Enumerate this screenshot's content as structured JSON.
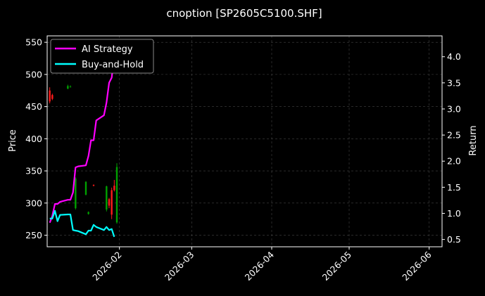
{
  "chart_data": {
    "type": "line",
    "title": "cnoption [SP2605C5100.SHF]",
    "ylabel": "Price",
    "y2label": "Return",
    "ylim": [
      232,
      560
    ],
    "y2lim": [
      0.36,
      4.4
    ],
    "xlim": [
      "2026-01-04",
      "2026-06-06"
    ],
    "yticks": [
      250,
      300,
      350,
      400,
      450,
      500,
      550
    ],
    "y2ticks": [
      0.5,
      1.0,
      1.5,
      2.0,
      2.5,
      3.0,
      3.5,
      4.0
    ],
    "xticks": [
      "2026-02",
      "2026-03",
      "2026-04",
      "2026-05",
      "2026-06"
    ],
    "grid": true,
    "legend_position": "top-left",
    "colors": {
      "background": "#000000",
      "strategy": "#ff00ff",
      "buyhold": "#00ffff",
      "candle_up": "#00a000",
      "candle_down": "#ff1a1a",
      "grid": "#444444",
      "axis": "#ffffff"
    },
    "series": [
      {
        "name": "AI Strategy",
        "axis": "right",
        "x": [
          "2026-01-05",
          "2026-01-06",
          "2026-01-07",
          "2026-01-08",
          "2026-01-09",
          "2026-01-12",
          "2026-01-13",
          "2026-01-14",
          "2026-01-15",
          "2026-01-16",
          "2026-01-19",
          "2026-01-20",
          "2026-01-21",
          "2026-01-22",
          "2026-01-23",
          "2026-01-26",
          "2026-01-27",
          "2026-01-28",
          "2026-01-29",
          "2026-01-30"
        ],
        "values": [
          0.82,
          0.95,
          1.18,
          1.18,
          1.22,
          1.26,
          1.26,
          1.4,
          1.88,
          1.9,
          1.92,
          2.1,
          2.4,
          2.4,
          2.78,
          2.88,
          3.12,
          3.5,
          3.6,
          4.0
        ]
      },
      {
        "name": "Buy-and-Hold",
        "axis": "right",
        "x": [
          "2026-01-05",
          "2026-01-06",
          "2026-01-07",
          "2026-01-08",
          "2026-01-09",
          "2026-01-12",
          "2026-01-13",
          "2026-01-14",
          "2026-01-15",
          "2026-01-16",
          "2026-01-19",
          "2026-01-20",
          "2026-01-21",
          "2026-01-22",
          "2026-01-23",
          "2026-01-26",
          "2026-01-27",
          "2026-01-28",
          "2026-01-29",
          "2026-01-30"
        ],
        "values": [
          0.9,
          0.9,
          1.05,
          0.85,
          0.97,
          0.98,
          0.98,
          0.68,
          0.67,
          0.66,
          0.6,
          0.67,
          0.67,
          0.78,
          0.74,
          0.68,
          0.74,
          0.68,
          0.7,
          0.55
        ]
      }
    ],
    "candles": [
      {
        "x": "2026-01-05",
        "open": 475,
        "close": 458,
        "high": 480,
        "low": 455
      },
      {
        "x": "2026-01-06",
        "open": 468,
        "close": 462,
        "high": 470,
        "low": 460
      },
      {
        "x": "2026-01-12",
        "open": 478,
        "close": 482,
        "high": 484,
        "low": 477
      },
      {
        "x": "2026-01-13",
        "open": 481,
        "close": 481,
        "high": 483,
        "low": 480
      },
      {
        "x": "2026-01-15",
        "open": 292,
        "close": 338,
        "high": 340,
        "low": 290
      },
      {
        "x": "2026-01-19",
        "open": 313,
        "close": 333,
        "high": 334,
        "low": 312
      },
      {
        "x": "2026-01-20",
        "open": 283,
        "close": 286,
        "high": 287,
        "low": 282
      },
      {
        "x": "2026-01-22",
        "open": 328,
        "close": 327,
        "high": 329,
        "low": 326
      },
      {
        "x": "2026-01-27",
        "open": 290,
        "close": 326,
        "high": 327,
        "low": 287
      },
      {
        "x": "2026-01-28",
        "open": 306,
        "close": 296,
        "high": 308,
        "low": 292
      },
      {
        "x": "2026-01-29",
        "open": 320,
        "close": 282,
        "high": 324,
        "low": 275
      },
      {
        "x": "2026-01-30",
        "open": 327,
        "close": 320,
        "high": 336,
        "low": 318
      },
      {
        "x": "2026-01-31",
        "open": 270,
        "close": 356,
        "high": 362,
        "low": 268
      }
    ]
  }
}
